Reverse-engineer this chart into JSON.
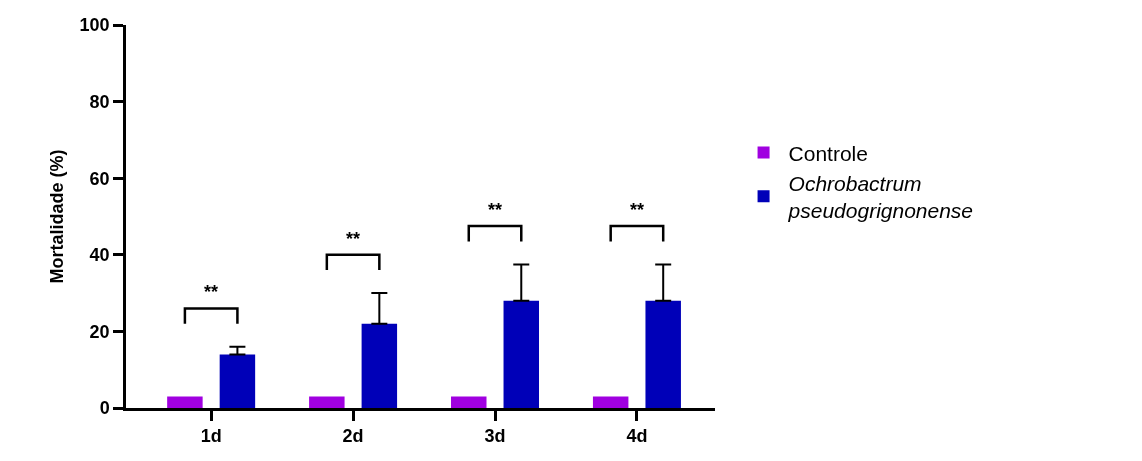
{
  "chart_data": {
    "type": "bar",
    "ylabel": "Mortalidade (%)",
    "categories": [
      "1d",
      "2d",
      "3d",
      "4d"
    ],
    "series": [
      {
        "name": "Controle",
        "color": "#a000e0",
        "values": [
          3,
          3,
          3,
          3
        ]
      },
      {
        "name": "Ochrobactrum pseudogrignonense",
        "color": "#0000b8",
        "values": [
          14,
          22,
          28,
          28
        ],
        "errors": [
          [
            14,
            16
          ],
          [
            22,
            30
          ],
          [
            28,
            37.5
          ],
          [
            28,
            37.5
          ]
        ]
      }
    ],
    "ylim": [
      0,
      100
    ],
    "yticks": [
      0,
      20,
      40,
      60,
      80,
      100
    ],
    "grid": false,
    "legend": "right",
    "annotations": [
      "**",
      "**",
      "**",
      "**"
    ]
  }
}
